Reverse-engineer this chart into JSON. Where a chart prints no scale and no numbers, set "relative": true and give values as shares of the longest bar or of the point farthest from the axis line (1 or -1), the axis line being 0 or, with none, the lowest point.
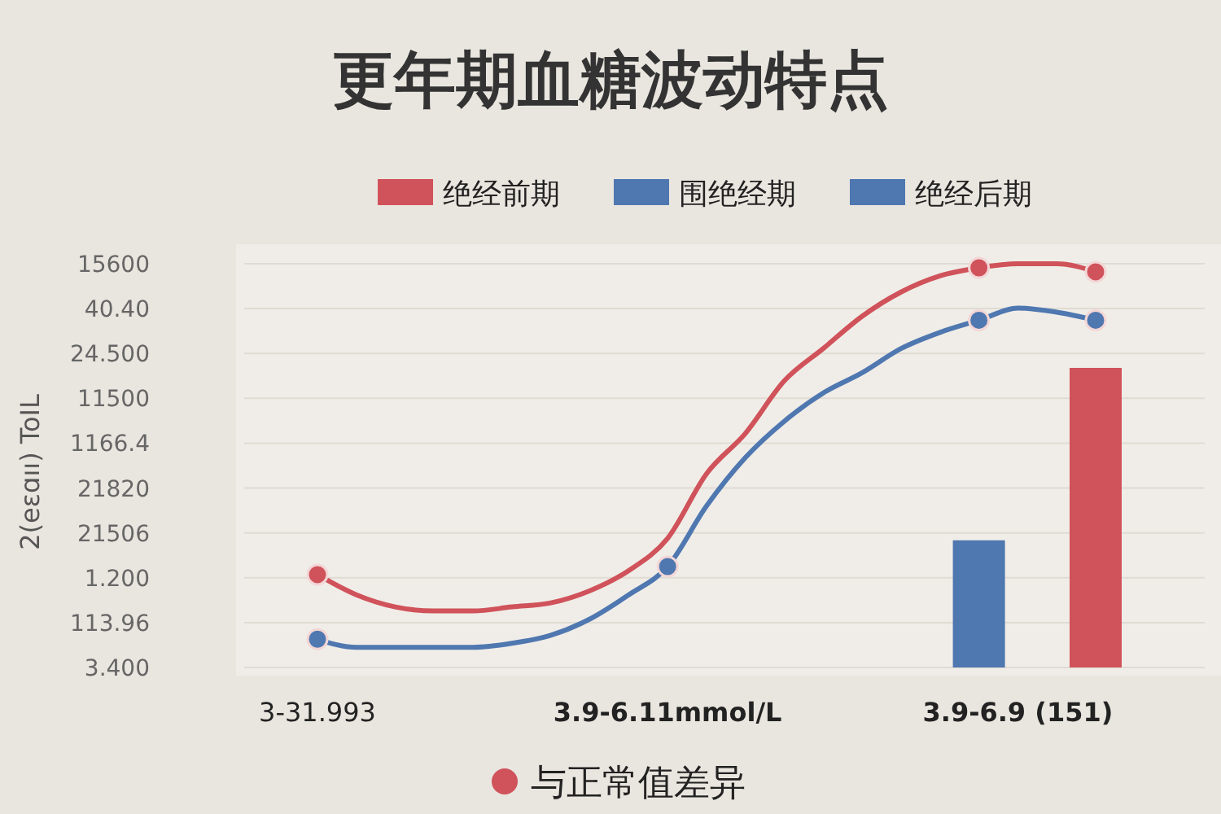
{
  "chart_data": {
    "type": "line",
    "title": "更年期血糖波动特点",
    "relative": true,
    "legend": "top",
    "categories": [
      "3-31.993",
      null,
      null,
      null,
      null,
      null,
      null,
      null,
      null,
      "3.9-6.11mmol/L",
      null,
      null,
      null,
      null,
      null,
      null,
      null,
      null,
      "3.9-6.9 (151)",
      null,
      null
    ],
    "series": [
      {
        "name": "绝经前期",
        "color": "#d0525a",
        "values": [
          0.23,
          0.18,
          0.15,
          0.14,
          0.14,
          0.15,
          0.16,
          0.19,
          0.24,
          0.32,
          0.48,
          0.58,
          0.71,
          0.79,
          0.87,
          0.93,
          0.97,
          0.99,
          1,
          1,
          0.98
        ]
      },
      {
        "name": "围绝经期",
        "color": "#4f77b0",
        "values": [
          0.07,
          0.05,
          0.05,
          0.05,
          0.05,
          0.06,
          0.08,
          0.12,
          0.18,
          0.25,
          0.4,
          0.52,
          0.61,
          0.68,
          0.73,
          0.79,
          0.83,
          0.86,
          0.89,
          0.88,
          0.86
        ]
      },
      {
        "name": "绝经后期",
        "type": "bar",
        "color": "#4f77b0",
        "values": [
          null,
          null,
          null,
          null,
          null,
          null,
          null,
          null,
          null,
          null,
          null,
          null,
          null,
          null,
          null,
          null,
          null,
          0.315,
          null,
          null,
          null
        ]
      },
      {
        "type": "bar",
        "color": "#d0525a",
        "values": [
          null,
          null,
          null,
          null,
          null,
          null,
          null,
          null,
          null,
          null,
          null,
          null,
          null,
          null,
          null,
          null,
          null,
          null,
          null,
          null,
          0.742
        ]
      },
      {
        "type": "scatter",
        "color": "#d0525a",
        "values": [
          0.23,
          null,
          null,
          null,
          null,
          null,
          null,
          null,
          null,
          null,
          null,
          null,
          null,
          null,
          null,
          null,
          null,
          0.99,
          null,
          null,
          0.98
        ]
      },
      {
        "type": "scatter",
        "color": "#4f77b0",
        "values": [
          0.07,
          null,
          null,
          null,
          null,
          null,
          null,
          null,
          null,
          0.25,
          null,
          null,
          null,
          null,
          null,
          null,
          null,
          0.86,
          null,
          null,
          0.86
        ]
      }
    ],
    "annotations": [
      "2(eɛɑıı) ToIL",
      "15600",
      "40.40",
      "24.500",
      "11500",
      "1166.4",
      "21820",
      "21506",
      "1.200",
      "113.96",
      "3.400",
      "与正常值差异"
    ]
  }
}
